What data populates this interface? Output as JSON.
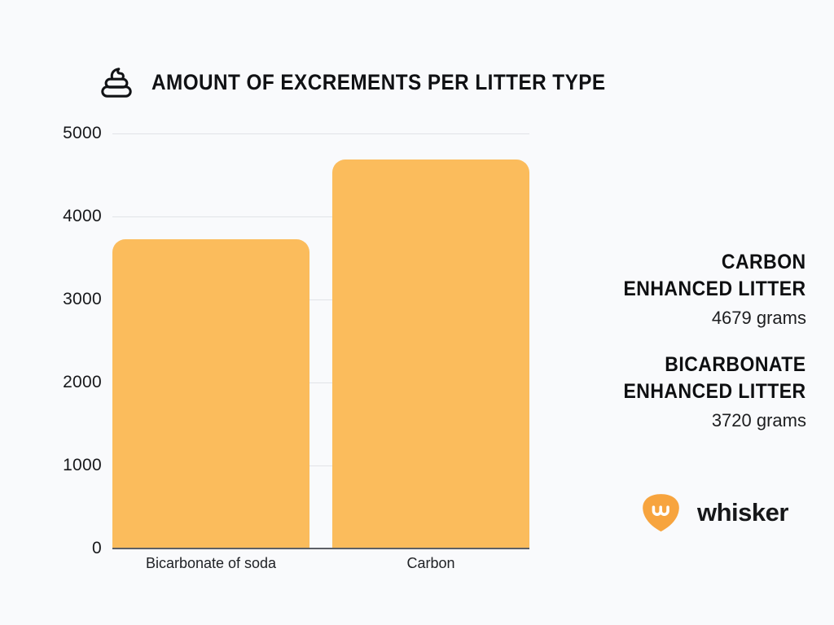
{
  "page": {
    "background": "#F9FAFC"
  },
  "header": {
    "icon": "poop-icon",
    "title": "Amount of excrements per litter type"
  },
  "chart_data": {
    "type": "bar",
    "categories": [
      "Bicarbonate of soda",
      "Carbon"
    ],
    "values": [
      3720,
      4679
    ],
    "title": "Amount of excrements per litter type",
    "xlabel": "",
    "ylabel": "",
    "ylim": [
      0,
      5000
    ],
    "yticks": [
      0,
      1000,
      2000,
      3000,
      4000,
      5000
    ],
    "bar_color": "#FBBC5C",
    "grid": true,
    "gridline_color": "#e1e3e7",
    "axis_color": "#5d6066",
    "legend": false,
    "legend_position": "none"
  },
  "annotations": [
    {
      "title_line1": "Carbon",
      "title_line2": "Enhanced litter",
      "value": "4679 grams"
    },
    {
      "title_line1": "Bicarbonate",
      "title_line2": "Enhanced litter",
      "value": "3720 grams"
    }
  ],
  "brand": {
    "logo_icon": "whisker-logo",
    "logo_color": "#F7A43E",
    "wordmark": "whisker"
  }
}
